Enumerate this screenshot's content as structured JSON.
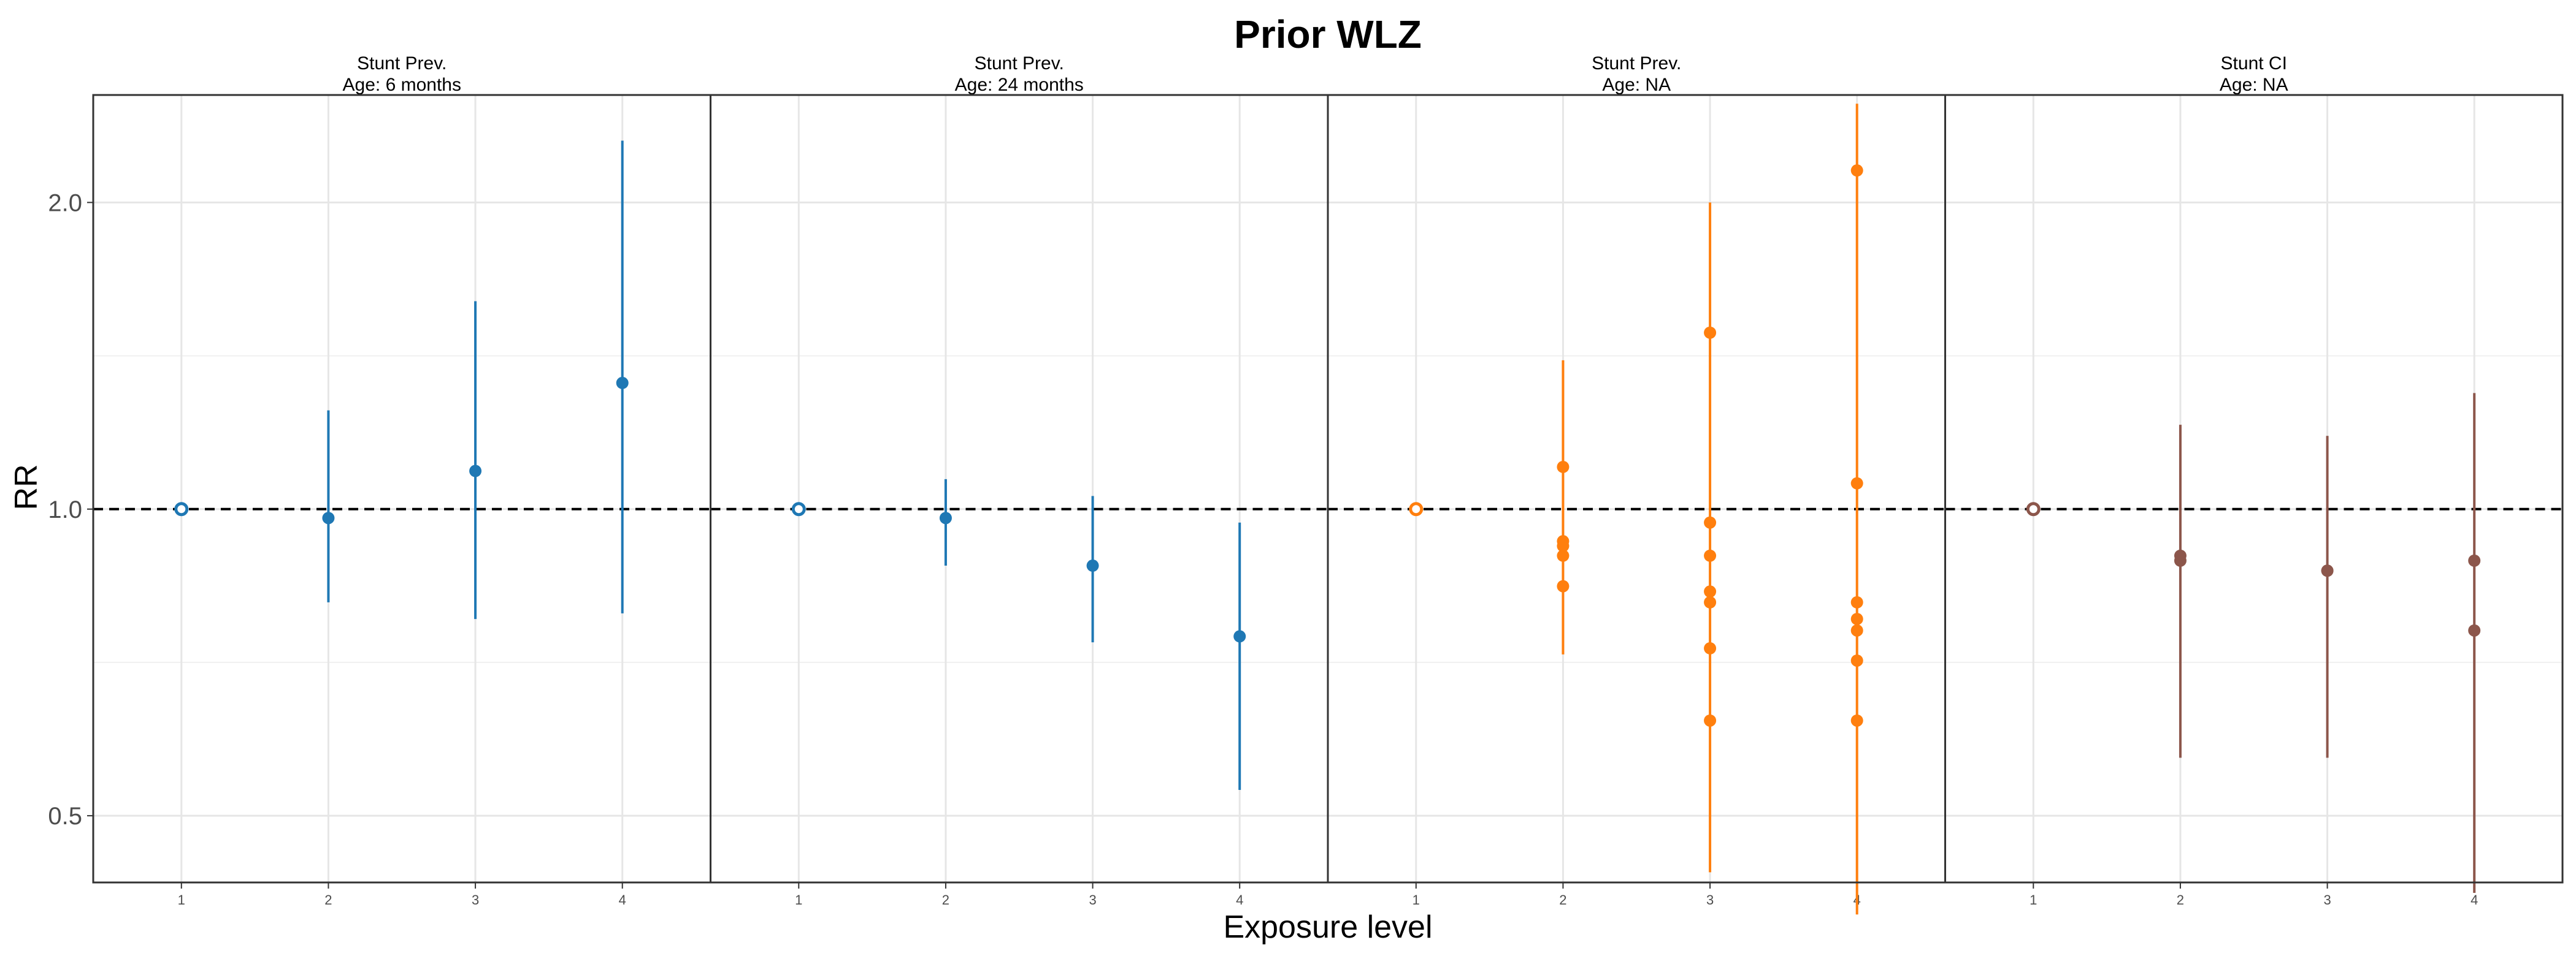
{
  "chart_data": {
    "type": "scatter",
    "title": "Prior WLZ",
    "xlabel": "Exposure level",
    "ylabel": "RR",
    "y_scale": "log",
    "ylim": [
      0.43,
      2.55
    ],
    "yticks": [
      0.5,
      1.0,
      2.0
    ],
    "ytick_labels": [
      "0.5",
      "1.0",
      "2.0"
    ],
    "xticks": [
      1,
      2,
      3,
      4
    ],
    "xtick_labels": [
      "1",
      "2",
      "3",
      "4"
    ],
    "reference_line": 1.0,
    "grid": true,
    "panels": [
      {
        "strip_line1": "Stunt Prev.",
        "strip_line2": "Age: 6 months",
        "color": "#1F78B4",
        "points": [
          {
            "x": 1,
            "y": 1.0,
            "lower": 1.0,
            "upper": 1.0,
            "reference": true
          },
          {
            "x": 2,
            "y": 0.98,
            "lower": 0.81,
            "upper": 1.25
          },
          {
            "x": 3,
            "y": 1.09,
            "lower": 0.78,
            "upper": 1.6
          },
          {
            "x": 4,
            "y": 1.33,
            "lower": 0.79,
            "upper": 2.3
          }
        ]
      },
      {
        "strip_line1": "Stunt Prev.",
        "strip_line2": "Age: 24 months",
        "color": "#1F78B4",
        "points": [
          {
            "x": 1,
            "y": 1.0,
            "lower": 1.0,
            "upper": 1.0,
            "reference": true
          },
          {
            "x": 2,
            "y": 0.98,
            "lower": 0.88,
            "upper": 1.07
          },
          {
            "x": 3,
            "y": 0.88,
            "lower": 0.74,
            "upper": 1.03
          },
          {
            "x": 4,
            "y": 0.75,
            "lower": 0.53,
            "upper": 0.97
          }
        ]
      },
      {
        "strip_line1": "Stunt Prev.",
        "strip_line2": "Age: NA",
        "color": "#FF7F0E",
        "points": [
          {
            "x": 1,
            "y": 1.0,
            "lower": 1.0,
            "upper": 1.0,
            "reference": true
          },
          {
            "x": 2,
            "y": 1.1,
            "lower": 0.72,
            "upper": 1.4
          },
          {
            "x": 2,
            "y": 0.93
          },
          {
            "x": 2,
            "y": 0.92
          },
          {
            "x": 2,
            "y": 0.9
          },
          {
            "x": 2,
            "y": 0.84
          },
          {
            "x": 3,
            "y": 1.49,
            "lower": 0.44,
            "upper": 2.0
          },
          {
            "x": 3,
            "y": 0.97
          },
          {
            "x": 3,
            "y": 0.9
          },
          {
            "x": 3,
            "y": 0.83
          },
          {
            "x": 3,
            "y": 0.81
          },
          {
            "x": 3,
            "y": 0.73
          },
          {
            "x": 3,
            "y": 0.62
          },
          {
            "x": 4,
            "y": 2.15,
            "lower": 0.4,
            "upper": 2.5
          },
          {
            "x": 4,
            "y": 1.06
          },
          {
            "x": 4,
            "y": 0.81
          },
          {
            "x": 4,
            "y": 0.78
          },
          {
            "x": 4,
            "y": 0.76
          },
          {
            "x": 4,
            "y": 0.71
          },
          {
            "x": 4,
            "y": 0.62
          }
        ]
      },
      {
        "strip_line1": "Stunt CI",
        "strip_line2": "Age: NA",
        "color": "#8C564B",
        "points": [
          {
            "x": 1,
            "y": 1.0,
            "lower": 1.0,
            "upper": 1.0,
            "reference": true
          },
          {
            "x": 2,
            "y": 0.9,
            "lower": 0.57,
            "upper": 1.21
          },
          {
            "x": 2,
            "y": 0.89
          },
          {
            "x": 3,
            "y": 0.87,
            "lower": 0.57,
            "upper": 1.18
          },
          {
            "x": 3,
            "y": 0.87
          },
          {
            "x": 4,
            "y": 0.89,
            "lower": 0.42,
            "upper": 1.3
          },
          {
            "x": 4,
            "y": 0.76
          }
        ]
      }
    ]
  }
}
